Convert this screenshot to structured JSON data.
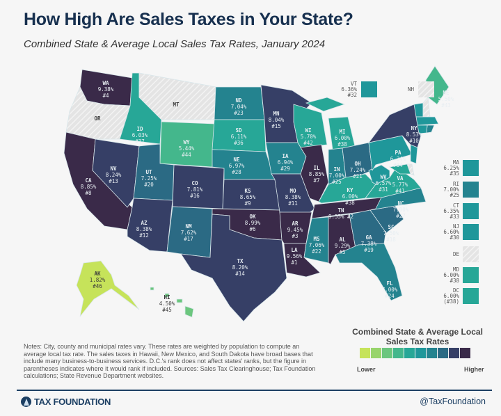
{
  "header": {
    "title": "How High Are Sales Taxes in Your State?",
    "subtitle": "Combined State & Average Local Sales Tax Rates, January 2024"
  },
  "map": {
    "no_tax_states": [
      "OR",
      "MT",
      "NH",
      "DE"
    ],
    "states": [
      {
        "abbr": "WA",
        "rate": "9.38%",
        "rank": "#4",
        "value": 9.38
      },
      {
        "abbr": "OR",
        "value": null
      },
      {
        "abbr": "CA",
        "rate": "8.85%",
        "rank": "#8",
        "value": 8.85
      },
      {
        "abbr": "NV",
        "rate": "8.24%",
        "rank": "#13",
        "value": 8.24
      },
      {
        "abbr": "ID",
        "rate": "6.03%",
        "rank": "#37",
        "value": 6.03
      },
      {
        "abbr": "MT",
        "value": null
      },
      {
        "abbr": "WY",
        "rate": "5.44%",
        "rank": "#44",
        "value": 5.44
      },
      {
        "abbr": "UT",
        "rate": "7.25%",
        "rank": "#20",
        "value": 7.25
      },
      {
        "abbr": "CO",
        "rate": "7.81%",
        "rank": "#16",
        "value": 7.81
      },
      {
        "abbr": "AZ",
        "rate": "8.38%",
        "rank": "#12",
        "value": 8.38
      },
      {
        "abbr": "NM",
        "rate": "7.62%",
        "rank": "#17",
        "value": 7.62
      },
      {
        "abbr": "ND",
        "rate": "7.04%",
        "rank": "#23",
        "value": 7.04
      },
      {
        "abbr": "SD",
        "rate": "6.11%",
        "rank": "#36",
        "value": 6.11
      },
      {
        "abbr": "NE",
        "rate": "6.97%",
        "rank": "#28",
        "value": 6.97
      },
      {
        "abbr": "KS",
        "rate": "8.65%",
        "rank": "#9",
        "value": 8.65
      },
      {
        "abbr": "OK",
        "rate": "8.99%",
        "rank": "#6",
        "value": 8.99
      },
      {
        "abbr": "TX",
        "rate": "8.20%",
        "rank": "#14",
        "value": 8.2
      },
      {
        "abbr": "MN",
        "rate": "8.04%",
        "rank": "#15",
        "value": 8.04
      },
      {
        "abbr": "IA",
        "rate": "6.94%",
        "rank": "#29",
        "value": 6.94
      },
      {
        "abbr": "MO",
        "rate": "8.38%",
        "rank": "#11",
        "value": 8.38
      },
      {
        "abbr": "AR",
        "rate": "9.45%",
        "rank": "#3",
        "value": 9.45
      },
      {
        "abbr": "LA",
        "rate": "9.56%",
        "rank": "#1",
        "value": 9.56
      },
      {
        "abbr": "WI",
        "rate": "5.70%",
        "rank": "#42",
        "value": 5.7
      },
      {
        "abbr": "IL",
        "rate": "8.85%",
        "rank": "#7",
        "value": 8.85
      },
      {
        "abbr": "MI",
        "rate": "6.00%",
        "rank": "#38",
        "value": 6.0
      },
      {
        "abbr": "IN",
        "rate": "7.00%",
        "rank": "#25",
        "value": 7.0
      },
      {
        "abbr": "OH",
        "rate": "7.24%",
        "rank": "#21",
        "value": 7.24
      },
      {
        "abbr": "KY",
        "rate": "6.00%",
        "rank": "#38",
        "value": 6.0
      },
      {
        "abbr": "TN",
        "rate": "9.55%",
        "rank": "#2",
        "value": 9.55
      },
      {
        "abbr": "MS",
        "rate": "7.06%",
        "rank": "#22",
        "value": 7.06
      },
      {
        "abbr": "AL",
        "rate": "9.29%",
        "rank": "#5",
        "value": 9.29
      },
      {
        "abbr": "GA",
        "rate": "7.38%",
        "rank": "#19",
        "value": 7.38
      },
      {
        "abbr": "FL",
        "rate": "7.00%",
        "rank": "#24",
        "value": 7.0
      },
      {
        "abbr": "SC",
        "rate": "7.50%",
        "rank": "#18",
        "value": 7.5
      },
      {
        "abbr": "NC",
        "rate": "7.00%",
        "rank": "#27",
        "value": 7.0
      },
      {
        "abbr": "VA",
        "rate": "5.77%",
        "rank": "#41",
        "value": 5.77
      },
      {
        "abbr": "WV",
        "rate": "6.57%",
        "rank": "#31",
        "value": 6.57
      },
      {
        "abbr": "PA",
        "rate": "6.34%",
        "rank": "#34",
        "value": 6.34
      },
      {
        "abbr": "NY",
        "rate": "8.53%",
        "rank": "#10",
        "value": 8.53
      },
      {
        "abbr": "ME",
        "rate": "5.50%",
        "rank": "#43",
        "value": 5.5
      },
      {
        "abbr": "VT",
        "rate": "6.36%",
        "rank": "#32",
        "value": 6.36
      },
      {
        "abbr": "NH",
        "value": null
      },
      {
        "abbr": "MA",
        "rate": "6.25%",
        "rank": "#35",
        "value": 6.25
      },
      {
        "abbr": "RI",
        "rate": "7.00%",
        "rank": "#25",
        "value": 7.0
      },
      {
        "abbr": "CT",
        "rate": "6.35%",
        "rank": "#33",
        "value": 6.35
      },
      {
        "abbr": "NJ",
        "rate": "6.60%",
        "rank": "#30",
        "value": 6.6
      },
      {
        "abbr": "DE",
        "value": null
      },
      {
        "abbr": "MD",
        "rate": "6.00%",
        "rank": "#38",
        "value": 6.0
      },
      {
        "abbr": "DC",
        "rate": "6.00%",
        "rank": "(#38)",
        "value": 6.0
      },
      {
        "abbr": "AK",
        "rate": "1.82%",
        "rank": "#46",
        "value": 1.82
      },
      {
        "abbr": "HI",
        "rate": "4.50%",
        "rank": "#45",
        "value": 4.5
      }
    ]
  },
  "legend": {
    "title": "Combined State & Average Local Sales Tax Rates",
    "low_label": "Lower",
    "high_label": "Higher",
    "colors": [
      "#c6e35a",
      "#98d46b",
      "#6cc67e",
      "#44b78c",
      "#27a797",
      "#1f979a",
      "#24838f",
      "#2b6a84",
      "#363f66",
      "#3a2a49"
    ]
  },
  "notes": "Notes: City, county and municipal rates vary. These rates are weighted by population to compute an average local tax rate. The sales taxes in Hawaii, New Mexico, and South Dakota have broad bases that include many business-to-business services. D.C.'s rank does not affect states' ranks, but the figure in parentheses indicates where it would rank if included. Sources: Sales Tax Clearinghouse; Tax Foundation calculations; State Revenue Department websites.",
  "footer": {
    "brand": "TAX FOUNDATION",
    "handle": "@TaxFoundation"
  }
}
